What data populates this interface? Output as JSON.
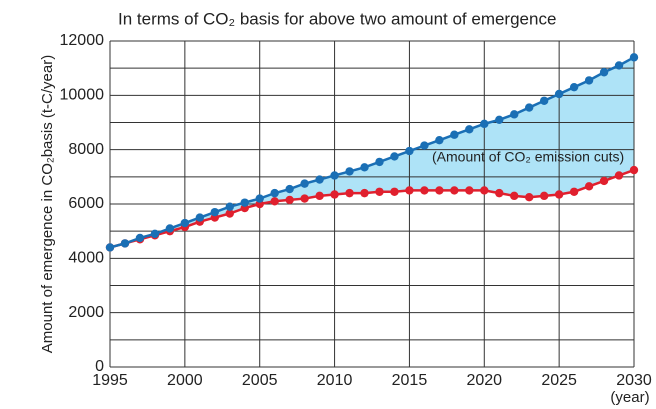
{
  "chart_data": {
    "type": "line",
    "title": "In terms of CO₂ basis for above two amount of emergence",
    "y_label": "Amount of emergence in CO₂basis (t-C/year)",
    "x_unit": "(year)",
    "annotation": "(Amount of CO₂ emission cuts)",
    "x": [
      1995,
      1996,
      1997,
      1998,
      1999,
      2000,
      2001,
      2002,
      2003,
      2004,
      2005,
      2006,
      2007,
      2008,
      2009,
      2010,
      2011,
      2012,
      2013,
      2014,
      2015,
      2016,
      2017,
      2018,
      2019,
      2020,
      2021,
      2022,
      2023,
      2024,
      2025,
      2026,
      2027,
      2028,
      2029,
      2030
    ],
    "series": [
      {
        "color": "#1a6fb5",
        "values": [
          4400,
          4550,
          4750,
          4900,
          5100,
          5300,
          5500,
          5700,
          5900,
          6050,
          6200,
          6400,
          6550,
          6750,
          6900,
          7050,
          7200,
          7350,
          7550,
          7750,
          7950,
          8150,
          8350,
          8550,
          8750,
          8950,
          9100,
          9300,
          9550,
          9800,
          10050,
          10300,
          10550,
          10850,
          11100,
          11400
        ]
      },
      {
        "color": "#e0202e",
        "values": [
          4400,
          4550,
          4700,
          4850,
          5000,
          5150,
          5350,
          5500,
          5650,
          5850,
          6000,
          6100,
          6150,
          6200,
          6300,
          6350,
          6400,
          6400,
          6450,
          6450,
          6500,
          6500,
          6500,
          6500,
          6500,
          6500,
          6400,
          6300,
          6250,
          6300,
          6350,
          6450,
          6650,
          6850,
          7050,
          7250
        ]
      }
    ],
    "fill_between_color": "#aee3f7",
    "xlim": [
      1995,
      2030
    ],
    "xticks": [
      1995,
      2000,
      2005,
      2010,
      2015,
      2020,
      2025,
      2030
    ],
    "ylim": [
      0,
      12000
    ],
    "yticks": [
      0,
      2000,
      4000,
      6000,
      8000,
      10000,
      12000
    ],
    "y_minor_grid": [
      1000,
      3000,
      5000,
      7000,
      9000,
      11000
    ],
    "grid": true
  }
}
